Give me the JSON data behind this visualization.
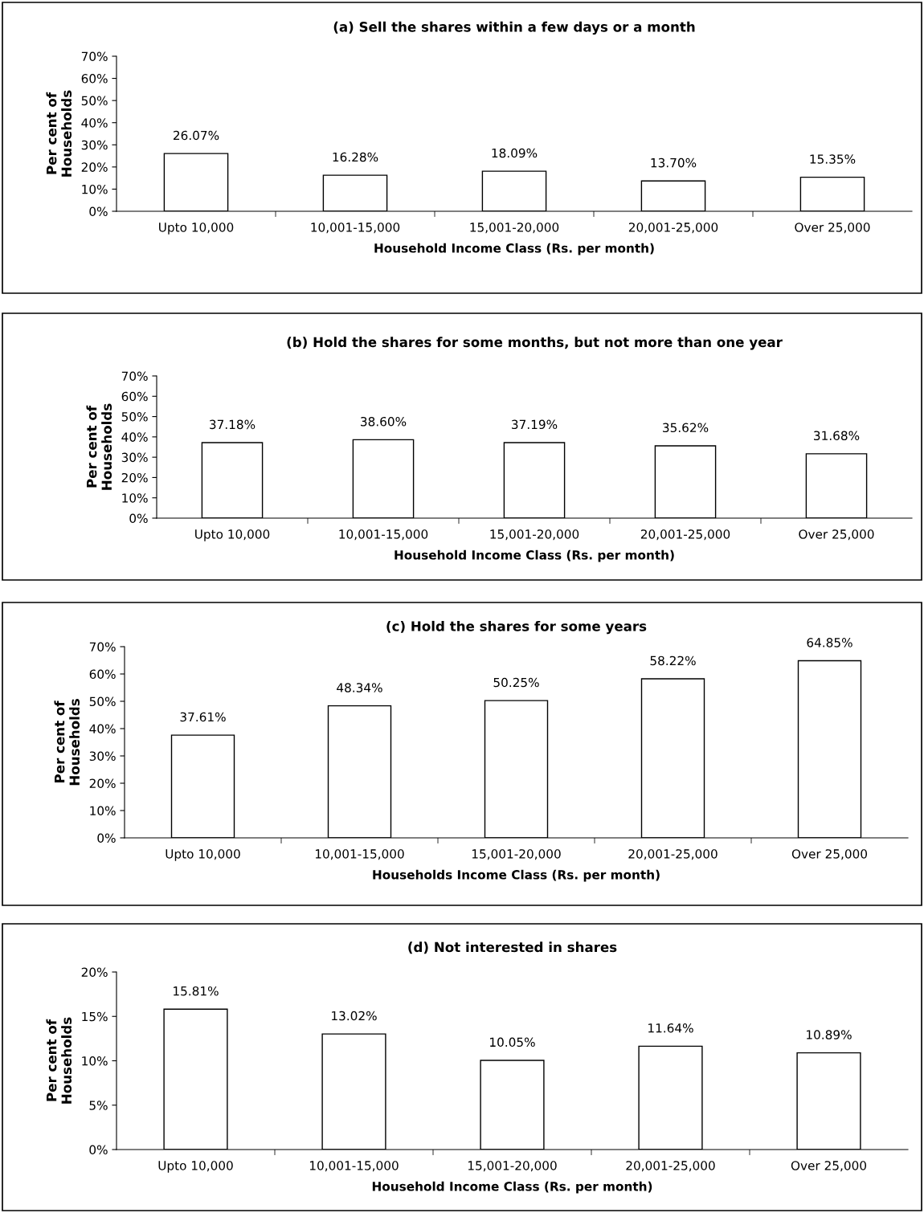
{
  "chart_data": [
    {
      "type": "bar",
      "title": "(a) Sell the shares within a few days or a month",
      "xlabel": "Household Income Class (Rs. per month)",
      "ylabel": "Per cent of\nHouseholds",
      "categories": [
        "Upto 10,000",
        "10,001-15,000",
        "15,001-20,000",
        "20,001-25,000",
        "Over 25,000"
      ],
      "values": [
        26.07,
        16.28,
        18.09,
        13.7,
        15.35
      ],
      "value_labels": [
        "26.07%",
        "16.28%",
        "18.09%",
        "13.70%",
        "15.35%"
      ],
      "color": "#ffffff",
      "ylim": [
        0,
        70
      ],
      "yticks": [
        {
          "value": 0,
          "label": "0%"
        },
        {
          "value": 10,
          "label": "10%"
        },
        {
          "value": 20,
          "label": "20%"
        },
        {
          "value": 30,
          "label": "30%"
        },
        {
          "value": 40,
          "label": "40%"
        },
        {
          "value": 50,
          "label": "50%"
        },
        {
          "value": 60,
          "label": "60%"
        },
        {
          "value": 70,
          "label": "70%"
        }
      ],
      "grid": false
    },
    {
      "type": "bar",
      "title": "(b) Hold the shares for some months, but not more than one year",
      "xlabel": "Household Income Class (Rs. per month)",
      "ylabel": "Per cent of\nHouseholds",
      "categories": [
        "Upto 10,000",
        "10,001-15,000",
        "15,001-20,000",
        "20,001-25,000",
        "Over 25,000"
      ],
      "values": [
        37.18,
        38.6,
        37.19,
        35.62,
        31.68
      ],
      "value_labels": [
        "37.18%",
        "38.60%",
        "37.19%",
        "35.62%",
        "31.68%"
      ],
      "color": "#ffffff",
      "ylim": [
        0,
        70
      ],
      "yticks": [
        {
          "value": 0,
          "label": "0%"
        },
        {
          "value": 10,
          "label": "10%"
        },
        {
          "value": 20,
          "label": "20%"
        },
        {
          "value": 30,
          "label": "30%"
        },
        {
          "value": 40,
          "label": "40%"
        },
        {
          "value": 50,
          "label": "50%"
        },
        {
          "value": 60,
          "label": "60%"
        },
        {
          "value": 70,
          "label": "70%"
        }
      ],
      "grid": false
    },
    {
      "type": "bar",
      "title": "(c) Hold the shares for some years",
      "xlabel": "Households Income Class (Rs. per month)",
      "ylabel": "Per cent of\nHouseholds",
      "categories": [
        "Upto 10,000",
        "10,001-15,000",
        "15,001-20,000",
        "20,001-25,000",
        "Over 25,000"
      ],
      "values": [
        37.61,
        48.34,
        50.25,
        58.22,
        64.85
      ],
      "value_labels": [
        "37.61%",
        "48.34%",
        "50.25%",
        "58.22%",
        "64.85%"
      ],
      "color": "#ffffff",
      "ylim": [
        0,
        70
      ],
      "yticks": [
        {
          "value": 0,
          "label": "0%"
        },
        {
          "value": 10,
          "label": "10%"
        },
        {
          "value": 20,
          "label": "20%"
        },
        {
          "value": 30,
          "label": "30%"
        },
        {
          "value": 40,
          "label": "40%"
        },
        {
          "value": 50,
          "label": "50%"
        },
        {
          "value": 60,
          "label": "60%"
        },
        {
          "value": 70,
          "label": "70%"
        }
      ],
      "grid": false
    },
    {
      "type": "bar",
      "title": "(d) Not interested in shares",
      "xlabel": "Household Income Class (Rs. per month)",
      "ylabel": "Per cent of\nHouseholds",
      "categories": [
        "Upto 10,000",
        "10,001-15,000",
        "15,001-20,000",
        "20,001-25,000",
        "Over 25,000"
      ],
      "values": [
        15.81,
        13.02,
        10.05,
        11.64,
        10.89
      ],
      "value_labels": [
        "15.81%",
        "13.02%",
        "10.05%",
        "11.64%",
        "10.89%"
      ],
      "color": "#ffffff",
      "ylim": [
        0,
        20
      ],
      "yticks": [
        {
          "value": 0,
          "label": "0%"
        },
        {
          "value": 5,
          "label": "5%"
        },
        {
          "value": 10,
          "label": "10%"
        },
        {
          "value": 15,
          "label": "15%"
        },
        {
          "value": 20,
          "label": "20%"
        }
      ],
      "grid": false
    }
  ]
}
